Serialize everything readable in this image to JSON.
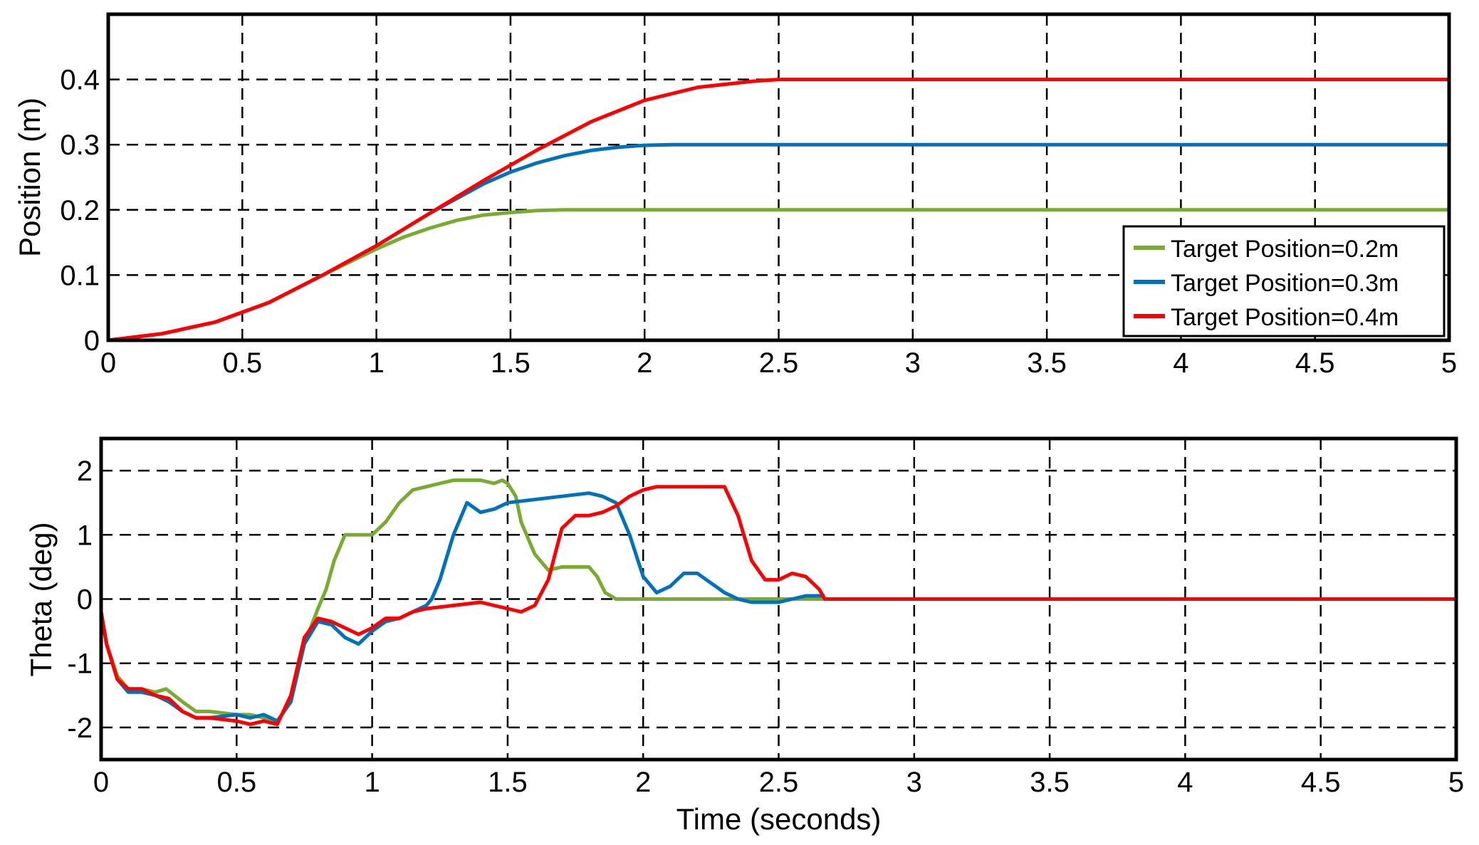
{
  "chart_data": [
    {
      "type": "line",
      "title": "",
      "xlabel": "",
      "ylabel": "Position (m)",
      "xlim": [
        0,
        5
      ],
      "ylim": [
        0,
        0.5
      ],
      "xticks": [
        "0",
        "0.5",
        "1",
        "1.5",
        "2",
        "2.5",
        "3",
        "3.5",
        "4",
        "4.5",
        "5"
      ],
      "yticks": [
        "0",
        "0.1",
        "0.2",
        "0.3",
        "0.4"
      ],
      "grid": true,
      "legend": "bottom-right",
      "series": [
        {
          "name": "Target Position=0.2m",
          "color": "#77ac30",
          "x": [
            0,
            0.2,
            0.4,
            0.6,
            0.8,
            0.9,
            1.0,
            1.1,
            1.2,
            1.3,
            1.4,
            1.5,
            1.6,
            1.7,
            5.0
          ],
          "y": [
            0,
            0.01,
            0.028,
            0.058,
            0.1,
            0.12,
            0.14,
            0.158,
            0.172,
            0.184,
            0.192,
            0.196,
            0.199,
            0.2,
            0.2
          ]
        },
        {
          "name": "Target Position=0.3m",
          "color": "#0072bd",
          "x": [
            0,
            0.2,
            0.4,
            0.6,
            0.8,
            1.0,
            1.2,
            1.4,
            1.5,
            1.6,
            1.7,
            1.8,
            1.9,
            2.0,
            2.1,
            5.0
          ],
          "y": [
            0,
            0.01,
            0.028,
            0.058,
            0.1,
            0.145,
            0.195,
            0.24,
            0.258,
            0.272,
            0.283,
            0.291,
            0.296,
            0.299,
            0.3,
            0.3
          ]
        },
        {
          "name": "Target Position=0.4m",
          "color": "#ff0000",
          "x": [
            0,
            0.2,
            0.4,
            0.6,
            0.8,
            1.0,
            1.2,
            1.4,
            1.6,
            1.8,
            2.0,
            2.2,
            2.4,
            2.5,
            5.0
          ],
          "y": [
            0,
            0.01,
            0.028,
            0.058,
            0.1,
            0.145,
            0.195,
            0.245,
            0.292,
            0.335,
            0.368,
            0.388,
            0.397,
            0.4,
            0.4
          ]
        }
      ]
    },
    {
      "type": "line",
      "title": "",
      "xlabel": "Time (seconds)",
      "ylabel": "Theta (deg)",
      "xlim": [
        0,
        5
      ],
      "ylim": [
        -2.5,
        2.5
      ],
      "xticks": [
        "0",
        "0.5",
        "1",
        "1.5",
        "2",
        "2.5",
        "3",
        "3.5",
        "4",
        "4.5",
        "5"
      ],
      "yticks": [
        "-2",
        "-1",
        "0",
        "1",
        "2"
      ],
      "grid": true,
      "legend": "none",
      "series": [
        {
          "color": "#77ac30",
          "x": [
            0,
            0.02,
            0.06,
            0.1,
            0.15,
            0.2,
            0.24,
            0.3,
            0.35,
            0.4,
            0.5,
            0.55,
            0.6,
            0.65,
            0.7,
            0.75,
            0.8,
            0.83,
            0.86,
            0.9,
            0.95,
            1.0,
            1.05,
            1.1,
            1.15,
            1.2,
            1.25,
            1.3,
            1.35,
            1.4,
            1.45,
            1.48,
            1.5,
            1.53,
            1.55,
            1.6,
            1.65,
            1.7,
            1.8,
            1.83,
            1.86,
            1.9,
            2.5,
            2.67
          ],
          "y": [
            -0.2,
            -0.7,
            -1.2,
            -1.4,
            -1.4,
            -1.45,
            -1.4,
            -1.6,
            -1.75,
            -1.75,
            -1.8,
            -1.8,
            -1.85,
            -1.9,
            -1.6,
            -0.7,
            -0.15,
            0.15,
            0.6,
            1.0,
            1.0,
            1.0,
            1.2,
            1.5,
            1.7,
            1.75,
            1.8,
            1.85,
            1.85,
            1.85,
            1.8,
            1.85,
            1.8,
            1.6,
            1.2,
            0.7,
            0.45,
            0.5,
            0.5,
            0.35,
            0.1,
            0.0,
            0.0,
            0.0
          ]
        },
        {
          "color": "#0072bd",
          "x": [
            0,
            0.02,
            0.06,
            0.1,
            0.15,
            0.2,
            0.25,
            0.3,
            0.35,
            0.4,
            0.5,
            0.55,
            0.6,
            0.65,
            0.7,
            0.75,
            0.8,
            0.85,
            0.9,
            0.95,
            1.0,
            1.05,
            1.1,
            1.15,
            1.2,
            1.22,
            1.25,
            1.3,
            1.35,
            1.4,
            1.45,
            1.5,
            1.6,
            1.7,
            1.8,
            1.85,
            1.9,
            1.95,
            2.0,
            2.05,
            2.1,
            2.15,
            2.2,
            2.25,
            2.3,
            2.35,
            2.4,
            2.5,
            2.6,
            2.67
          ],
          "y": [
            -0.2,
            -0.7,
            -1.25,
            -1.45,
            -1.45,
            -1.5,
            -1.6,
            -1.75,
            -1.85,
            -1.85,
            -1.8,
            -1.85,
            -1.8,
            -1.9,
            -1.6,
            -0.7,
            -0.35,
            -0.4,
            -0.6,
            -0.7,
            -0.5,
            -0.35,
            -0.3,
            -0.2,
            -0.1,
            0.0,
            0.3,
            1.0,
            1.5,
            1.35,
            1.4,
            1.5,
            1.55,
            1.6,
            1.65,
            1.6,
            1.5,
            1.0,
            0.35,
            0.1,
            0.2,
            0.4,
            0.4,
            0.25,
            0.1,
            0.0,
            -0.05,
            -0.05,
            0.05,
            0.05
          ]
        },
        {
          "color": "#ff0000",
          "x": [
            0,
            0.02,
            0.06,
            0.1,
            0.15,
            0.2,
            0.25,
            0.3,
            0.35,
            0.4,
            0.5,
            0.55,
            0.6,
            0.65,
            0.7,
            0.75,
            0.8,
            0.85,
            0.9,
            0.95,
            1.0,
            1.05,
            1.1,
            1.15,
            1.2,
            1.3,
            1.4,
            1.5,
            1.55,
            1.6,
            1.65,
            1.7,
            1.75,
            1.8,
            1.85,
            1.9,
            1.95,
            2.0,
            2.05,
            2.1,
            2.2,
            2.3,
            2.35,
            2.4,
            2.45,
            2.5,
            2.55,
            2.6,
            2.65,
            2.67,
            2.7,
            5.0
          ],
          "y": [
            -0.2,
            -0.7,
            -1.25,
            -1.4,
            -1.4,
            -1.5,
            -1.55,
            -1.75,
            -1.85,
            -1.85,
            -1.9,
            -1.95,
            -1.9,
            -1.95,
            -1.5,
            -0.6,
            -0.3,
            -0.35,
            -0.45,
            -0.55,
            -0.45,
            -0.3,
            -0.3,
            -0.2,
            -0.15,
            -0.1,
            -0.05,
            -0.15,
            -0.2,
            -0.1,
            0.3,
            1.1,
            1.3,
            1.3,
            1.35,
            1.45,
            1.6,
            1.7,
            1.75,
            1.75,
            1.75,
            1.75,
            1.3,
            0.6,
            0.3,
            0.3,
            0.4,
            0.35,
            0.15,
            0.0,
            0.0,
            0.0
          ]
        }
      ]
    }
  ]
}
